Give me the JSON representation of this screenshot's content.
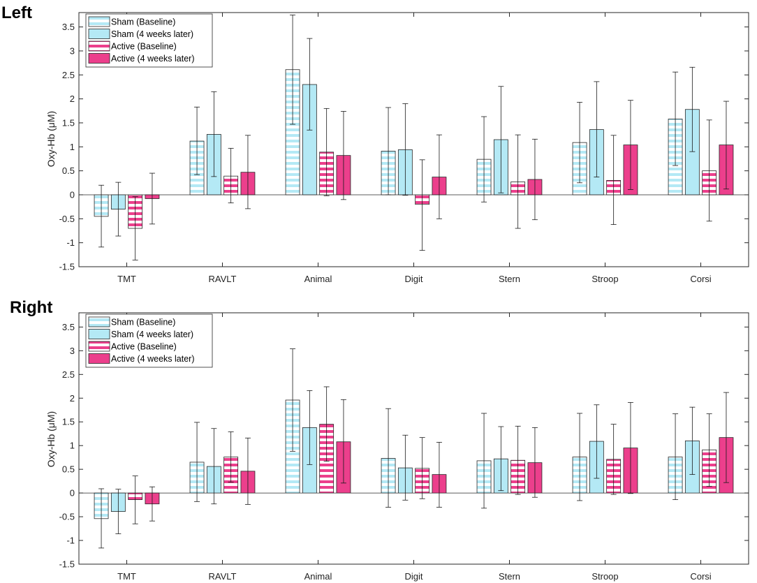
{
  "colors": {
    "sham": "#b4e9f5",
    "active": "#ec3f8c",
    "stripe_light": "#ffffff",
    "axis": "#262626",
    "error": "#1a1a1a"
  },
  "chart_data": [
    {
      "type": "bar",
      "panel_label": "Left",
      "ylabel": "Oxy-Hb (μM)",
      "xlabel": "",
      "ylim": [
        -1.5,
        3.8
      ],
      "yticks": [
        -1.5,
        -1,
        -0.5,
        0,
        0.5,
        1,
        1.5,
        2,
        2.5,
        3,
        3.5
      ],
      "ytick_labels": [
        "-1.5",
        "-1",
        "-0.5",
        "0",
        "0.5",
        "1",
        "1.5",
        "2",
        "2.5",
        "3",
        "3.5"
      ],
      "grid": false,
      "legend_position": "top-left",
      "categories": [
        "TMT",
        "RAVLT",
        "Animal",
        "Digit",
        "Stern",
        "Stroop",
        "Corsi"
      ],
      "series": [
        {
          "name": "Sham (Baseline)",
          "color_key": "sham",
          "pattern": "striped",
          "values": [
            -0.45,
            1.12,
            2.61,
            0.91,
            0.74,
            1.09,
            1.58
          ],
          "err_low": [
            -1.09,
            0.42,
            1.47,
            0.0,
            -0.15,
            0.25,
            0.61
          ],
          "err_high": [
            0.2,
            1.83,
            3.75,
            1.82,
            1.63,
            1.93,
            2.56
          ]
        },
        {
          "name": "Sham (4 weeks later)",
          "color_key": "sham",
          "pattern": "solid",
          "values": [
            -0.3,
            1.26,
            2.3,
            0.94,
            1.15,
            1.36,
            1.78
          ],
          "err_low": [
            -0.86,
            0.38,
            1.35,
            -0.01,
            0.04,
            0.37,
            0.9
          ],
          "err_high": [
            0.26,
            2.15,
            3.26,
            1.9,
            2.26,
            2.36,
            2.66
          ]
        },
        {
          "name": "Active (Baseline)",
          "color_key": "active",
          "pattern": "striped",
          "values": [
            -0.7,
            0.39,
            0.89,
            -0.2,
            0.27,
            0.3,
            0.5
          ],
          "err_low": [
            -1.36,
            -0.17,
            -0.02,
            -1.16,
            -0.7,
            -0.62,
            -0.55
          ],
          "err_high": [
            -0.04,
            0.97,
            1.8,
            0.73,
            1.25,
            1.24,
            1.56
          ]
        },
        {
          "name": "Active (4 weeks later)",
          "color_key": "active",
          "pattern": "solid",
          "values": [
            -0.08,
            0.47,
            0.82,
            0.37,
            0.32,
            1.04,
            1.04
          ],
          "err_low": [
            -0.61,
            -0.29,
            -0.1,
            -0.5,
            -0.52,
            0.11,
            0.12
          ],
          "err_high": [
            0.45,
            1.24,
            1.74,
            1.25,
            1.16,
            1.97,
            1.95
          ]
        }
      ]
    },
    {
      "type": "bar",
      "panel_label": "Right",
      "ylabel": "Oxy-Hb (μM)",
      "xlabel": "",
      "ylim": [
        -1.5,
        3.8
      ],
      "yticks": [
        -1.5,
        -1,
        -0.5,
        0,
        0.5,
        1,
        1.5,
        2,
        2.5,
        3,
        3.5
      ],
      "ytick_labels": [
        "-1.5",
        "-1",
        "-0.5",
        "0",
        "0.5",
        "1",
        "1.5",
        "2",
        "2.5",
        "3",
        "3.5"
      ],
      "grid": false,
      "legend_position": "top-left",
      "categories": [
        "TMT",
        "RAVLT",
        "Animal",
        "Digit",
        "Stern",
        "Stroop",
        "Corsi"
      ],
      "series": [
        {
          "name": "Sham (Baseline)",
          "color_key": "sham",
          "pattern": "striped",
          "values": [
            -0.54,
            0.65,
            1.96,
            0.73,
            0.68,
            0.76,
            0.76
          ],
          "err_low": [
            -1.16,
            -0.18,
            0.88,
            -0.3,
            -0.32,
            -0.16,
            -0.14
          ],
          "err_high": [
            0.09,
            1.49,
            3.04,
            1.78,
            1.68,
            1.68,
            1.67
          ]
        },
        {
          "name": "Sham (4 weeks later)",
          "color_key": "sham",
          "pattern": "solid",
          "values": [
            -0.39,
            0.56,
            1.38,
            0.53,
            0.72,
            1.09,
            1.1
          ],
          "err_low": [
            -0.86,
            -0.23,
            0.6,
            -0.15,
            0.05,
            0.31,
            0.39
          ],
          "err_high": [
            0.08,
            1.36,
            2.16,
            1.22,
            1.4,
            1.86,
            1.81
          ]
        },
        {
          "name": "Active (Baseline)",
          "color_key": "active",
          "pattern": "striped",
          "values": [
            -0.14,
            0.76,
            1.45,
            0.52,
            0.69,
            0.71,
            0.91
          ],
          "err_low": [
            -0.65,
            0.23,
            0.67,
            -0.12,
            -0.03,
            -0.03,
            0.14
          ],
          "err_high": [
            0.36,
            1.29,
            2.24,
            1.17,
            1.41,
            1.45,
            1.67
          ]
        },
        {
          "name": "Active (4 weeks later)",
          "color_key": "active",
          "pattern": "solid",
          "values": [
            -0.23,
            0.46,
            1.08,
            0.39,
            0.64,
            0.95,
            1.17
          ],
          "err_low": [
            -0.59,
            -0.24,
            0.21,
            -0.3,
            -0.09,
            -0.01,
            0.22
          ],
          "err_high": [
            0.13,
            1.16,
            1.97,
            1.07,
            1.38,
            1.91,
            2.12
          ]
        }
      ]
    }
  ]
}
